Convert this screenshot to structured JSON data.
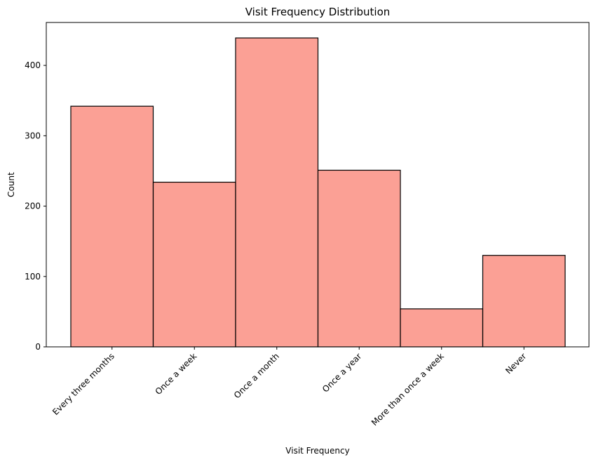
{
  "chart_data": {
    "type": "bar",
    "title": "Visit Frequency Distribution",
    "xlabel": "Visit Frequency",
    "ylabel": "Count",
    "categories": [
      "Every three months",
      "Once a week",
      "Once a month",
      "Once a year",
      "More than once a week",
      "Never"
    ],
    "values": [
      342,
      234,
      439,
      251,
      54,
      130
    ],
    "ylim": [
      0,
      461
    ],
    "yticks": [
      0,
      100,
      200,
      300,
      400
    ],
    "grid": false,
    "bar_color": "#fa8072",
    "bar_edge_color": "#000000"
  }
}
